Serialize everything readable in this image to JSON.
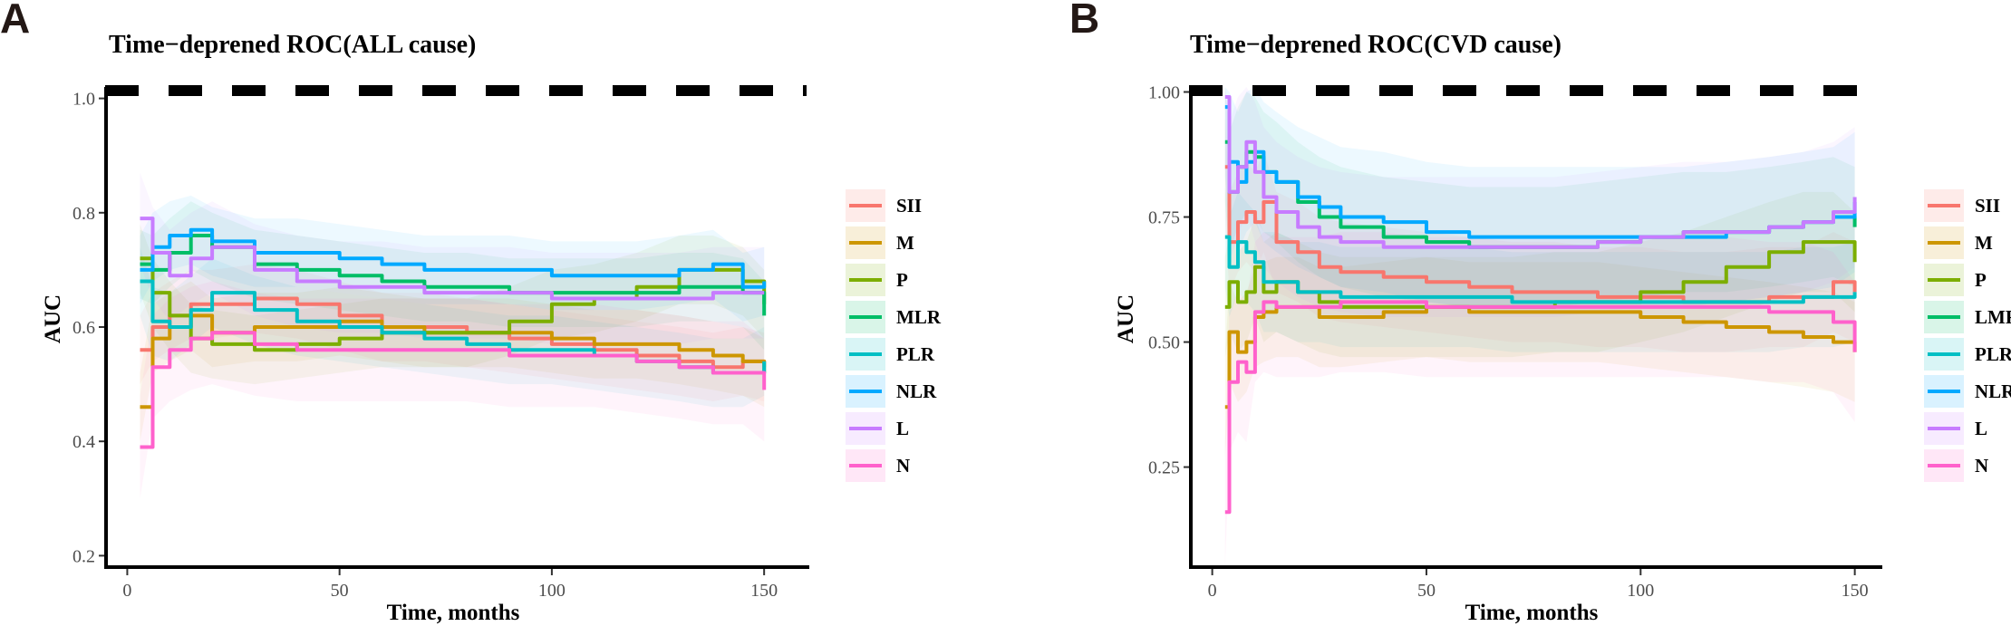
{
  "chart_data": [
    {
      "type": "line",
      "panel_label": "A",
      "title": "Time−deprened ROC(ALL cause)",
      "xlabel": "Time, months",
      "ylabel": "AUC",
      "xlim": [
        -5,
        160
      ],
      "ylim": [
        0.18,
        1.02
      ],
      "x_ticks": [
        0,
        50,
        100,
        150
      ],
      "x_tick_labels": [
        "0",
        "50",
        "100",
        "150"
      ],
      "y_ticks": [
        0.2,
        0.4,
        0.6,
        0.8,
        1.0
      ],
      "y_tick_labels": [
        "0.2",
        "0.4",
        "0.6",
        "0.8",
        "1.0"
      ],
      "reference_line": 1.0,
      "legend_position": "right",
      "x": [
        3,
        6,
        10,
        15,
        20,
        30,
        40,
        50,
        60,
        70,
        80,
        90,
        100,
        110,
        120,
        130,
        138,
        145,
        150
      ],
      "series": [
        {
          "name": "SII",
          "color": "#F8766D",
          "band": 0.06,
          "values": [
            0.56,
            0.6,
            0.62,
            0.64,
            0.64,
            0.65,
            0.64,
            0.62,
            0.6,
            0.6,
            0.59,
            0.58,
            0.57,
            0.56,
            0.55,
            0.54,
            0.53,
            0.54,
            0.53
          ]
        },
        {
          "name": "M",
          "color": "#CD9600",
          "band": 0.06,
          "values": [
            0.46,
            0.58,
            0.6,
            0.62,
            0.59,
            0.6,
            0.6,
            0.61,
            0.6,
            0.59,
            0.59,
            0.59,
            0.58,
            0.57,
            0.57,
            0.56,
            0.55,
            0.54,
            0.52
          ]
        },
        {
          "name": "P",
          "color": "#7CAE00",
          "band": 0.06,
          "values": [
            0.72,
            0.66,
            0.62,
            0.58,
            0.57,
            0.56,
            0.57,
            0.58,
            0.59,
            0.59,
            0.59,
            0.61,
            0.64,
            0.65,
            0.67,
            0.7,
            0.7,
            0.68,
            0.64
          ]
        },
        {
          "name": "MLR",
          "color": "#00BE67",
          "band": 0.06,
          "values": [
            0.71,
            0.7,
            0.73,
            0.76,
            0.74,
            0.71,
            0.7,
            0.69,
            0.68,
            0.67,
            0.67,
            0.66,
            0.66,
            0.66,
            0.66,
            0.67,
            0.67,
            0.66,
            0.62
          ]
        },
        {
          "name": "PLR",
          "color": "#00BFC4",
          "band": 0.06,
          "values": [
            0.68,
            0.61,
            0.6,
            0.63,
            0.66,
            0.63,
            0.61,
            0.6,
            0.59,
            0.58,
            0.57,
            0.56,
            0.56,
            0.55,
            0.54,
            0.53,
            0.52,
            0.52,
            0.54
          ]
        },
        {
          "name": "NLR",
          "color": "#00A9FF",
          "band": 0.06,
          "values": [
            0.7,
            0.74,
            0.76,
            0.77,
            0.75,
            0.73,
            0.73,
            0.72,
            0.71,
            0.7,
            0.7,
            0.7,
            0.69,
            0.69,
            0.69,
            0.7,
            0.71,
            0.67,
            0.68
          ]
        },
        {
          "name": "L",
          "color": "#C77CFF",
          "band": 0.08,
          "values": [
            0.79,
            0.73,
            0.69,
            0.72,
            0.74,
            0.7,
            0.68,
            0.67,
            0.67,
            0.66,
            0.66,
            0.66,
            0.65,
            0.65,
            0.65,
            0.65,
            0.66,
            0.66,
            0.66
          ]
        },
        {
          "name": "N",
          "color": "#FF61CC",
          "band": 0.09,
          "values": [
            0.39,
            0.53,
            0.56,
            0.58,
            0.59,
            0.57,
            0.56,
            0.56,
            0.56,
            0.56,
            0.56,
            0.55,
            0.55,
            0.55,
            0.54,
            0.53,
            0.52,
            0.52,
            0.49
          ]
        }
      ]
    },
    {
      "type": "line",
      "panel_label": "B",
      "title": "Time−deprened ROC(CVD cause)",
      "xlabel": "Time, months",
      "ylabel": "AUC",
      "xlim": [
        -5,
        156
      ],
      "ylim": [
        0.05,
        1.01
      ],
      "x_ticks": [
        0,
        50,
        100,
        150
      ],
      "x_tick_labels": [
        "0",
        "50",
        "100",
        "150"
      ],
      "y_ticks": [
        0.25,
        0.5,
        0.75,
        1.0
      ],
      "y_tick_labels": [
        "0.25",
        "0.50",
        "0.75",
        "1.00"
      ],
      "reference_line": 1.0,
      "legend_position": "right",
      "x": [
        3,
        4,
        6,
        8,
        10,
        12,
        15,
        20,
        25,
        30,
        40,
        50,
        60,
        70,
        80,
        90,
        100,
        110,
        120,
        130,
        138,
        145,
        150
      ],
      "series": [
        {
          "name": "SII",
          "color": "#F8766D",
          "band": 0.1,
          "values": [
            0.85,
            0.7,
            0.74,
            0.76,
            0.74,
            0.78,
            0.7,
            0.68,
            0.65,
            0.64,
            0.63,
            0.62,
            0.61,
            0.6,
            0.6,
            0.59,
            0.59,
            0.58,
            0.58,
            0.59,
            0.59,
            0.62,
            0.6
          ]
        },
        {
          "name": "M",
          "color": "#CD9600",
          "band": 0.1,
          "values": [
            0.37,
            0.52,
            0.48,
            0.5,
            0.55,
            0.56,
            0.57,
            0.57,
            0.55,
            0.55,
            0.56,
            0.57,
            0.56,
            0.56,
            0.56,
            0.56,
            0.55,
            0.54,
            0.53,
            0.52,
            0.51,
            0.5,
            0.48
          ]
        },
        {
          "name": "P",
          "color": "#7CAE00",
          "band": 0.1,
          "values": [
            0.57,
            0.62,
            0.58,
            0.6,
            0.65,
            0.6,
            0.62,
            0.6,
            0.58,
            0.57,
            0.57,
            0.57,
            0.57,
            0.57,
            0.58,
            0.58,
            0.6,
            0.62,
            0.65,
            0.68,
            0.7,
            0.7,
            0.66
          ]
        },
        {
          "name": "LMR",
          "color": "#00BE67",
          "band": 0.12,
          "values": [
            0.9,
            0.8,
            0.85,
            0.88,
            0.87,
            0.84,
            0.82,
            0.78,
            0.75,
            0.73,
            0.71,
            0.7,
            0.69,
            0.69,
            0.69,
            0.7,
            0.71,
            0.72,
            0.72,
            0.73,
            0.74,
            0.75,
            0.73
          ]
        },
        {
          "name": "PLR",
          "color": "#00BFC4",
          "band": 0.1,
          "values": [
            0.71,
            0.65,
            0.7,
            0.68,
            0.66,
            0.62,
            0.62,
            0.6,
            0.6,
            0.59,
            0.59,
            0.59,
            0.59,
            0.58,
            0.58,
            0.58,
            0.58,
            0.58,
            0.58,
            0.58,
            0.59,
            0.59,
            0.6
          ]
        },
        {
          "name": "NLR",
          "color": "#00A9FF",
          "band": 0.14,
          "values": [
            0.97,
            0.86,
            0.82,
            0.86,
            0.88,
            0.84,
            0.82,
            0.79,
            0.77,
            0.75,
            0.74,
            0.72,
            0.71,
            0.71,
            0.71,
            0.71,
            0.71,
            0.71,
            0.72,
            0.73,
            0.74,
            0.75,
            0.78
          ]
        },
        {
          "name": "L",
          "color": "#C77CFF",
          "band": 0.14,
          "values": [
            0.99,
            0.8,
            0.85,
            0.9,
            0.84,
            0.79,
            0.76,
            0.73,
            0.71,
            0.7,
            0.69,
            0.69,
            0.69,
            0.69,
            0.69,
            0.7,
            0.71,
            0.72,
            0.72,
            0.73,
            0.74,
            0.76,
            0.79
          ]
        },
        {
          "name": "N",
          "color": "#FF61CC",
          "band": 0.14,
          "values": [
            0.16,
            0.42,
            0.46,
            0.44,
            0.56,
            0.58,
            0.57,
            0.57,
            0.57,
            0.58,
            0.58,
            0.57,
            0.57,
            0.57,
            0.57,
            0.57,
            0.57,
            0.57,
            0.57,
            0.56,
            0.56,
            0.54,
            0.48
          ]
        }
      ]
    }
  ]
}
